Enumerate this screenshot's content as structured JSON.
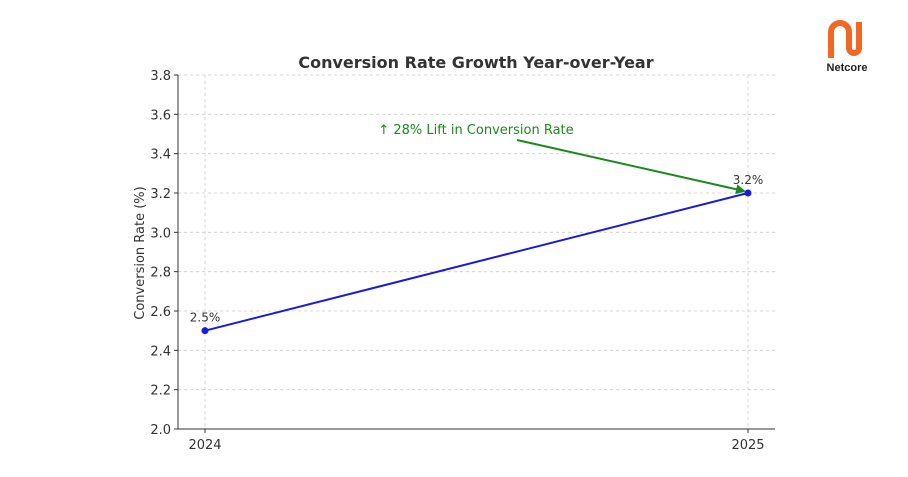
{
  "brand": {
    "name": "Netcore",
    "color": "#f26722"
  },
  "chart_data": {
    "type": "line",
    "title": "Conversion Rate Growth Year-over-Year",
    "xlabel": "",
    "ylabel": "Conversion Rate (%)",
    "categories": [
      "2024",
      "2025"
    ],
    "series": [
      {
        "name": "Conversion Rate",
        "values": [
          2.5,
          3.2
        ],
        "color": "#1a1adf",
        "data_labels": [
          "2.5%",
          "3.2%"
        ]
      }
    ],
    "ylim": [
      2.0,
      3.8
    ],
    "yticks": [
      2.0,
      2.2,
      2.4,
      2.6,
      2.8,
      3.0,
      3.2,
      3.4,
      3.6,
      3.8
    ],
    "ytick_labels": [
      "2.0",
      "2.2",
      "2.4",
      "2.6",
      "2.8",
      "3.0",
      "3.2",
      "3.4",
      "3.6",
      "3.8"
    ],
    "grid": true,
    "annotation": {
      "text": "↑ 28% Lift in Conversion Rate",
      "color": "#1a8a1a",
      "points_to": {
        "category": "2025",
        "value": 3.2
      }
    }
  }
}
